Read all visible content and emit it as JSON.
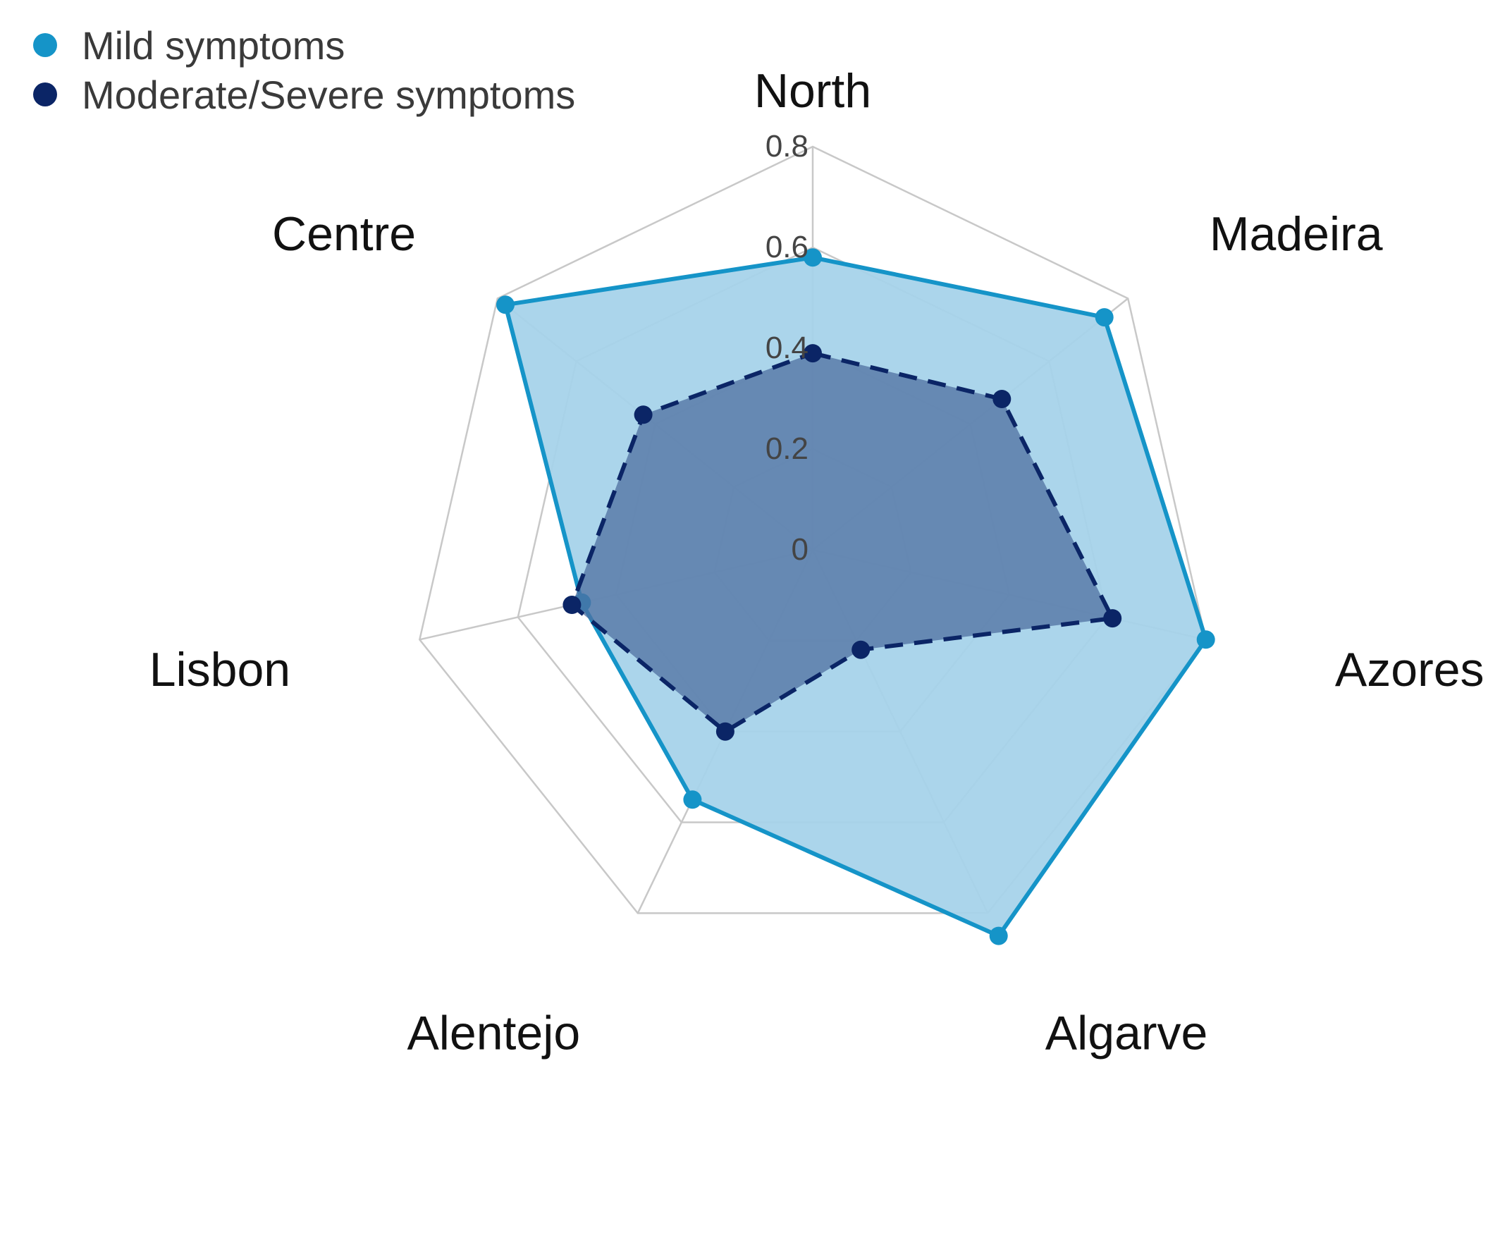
{
  "chart_data": {
    "type": "radar",
    "axes": [
      "North",
      "Madeira",
      "Azores",
      "Algarve",
      "Alentejo",
      "Lisbon",
      "Centre"
    ],
    "rlim": [
      0,
      0.8
    ],
    "ticks": [
      "0",
      "0.2",
      "0.4",
      "0.6",
      "0.8"
    ],
    "tick_values": [
      0,
      0.2,
      0.4,
      0.6,
      0.8
    ],
    "grid": true,
    "legend_position": "top-left",
    "series": [
      {
        "name": "Mild symptoms",
        "values": [
          0.58,
          0.74,
          0.8,
          0.85,
          0.55,
          0.47,
          0.78
        ],
        "color": "#1594c8",
        "fill": "#a6d3ea",
        "line_style": "solid"
      },
      {
        "name": "Moderate/Severe symptoms",
        "values": [
          0.39,
          0.48,
          0.61,
          0.22,
          0.4,
          0.49,
          0.43
        ],
        "color": "#0b2566",
        "fill": "#4f6fa0",
        "line_style": "dashed"
      }
    ]
  }
}
